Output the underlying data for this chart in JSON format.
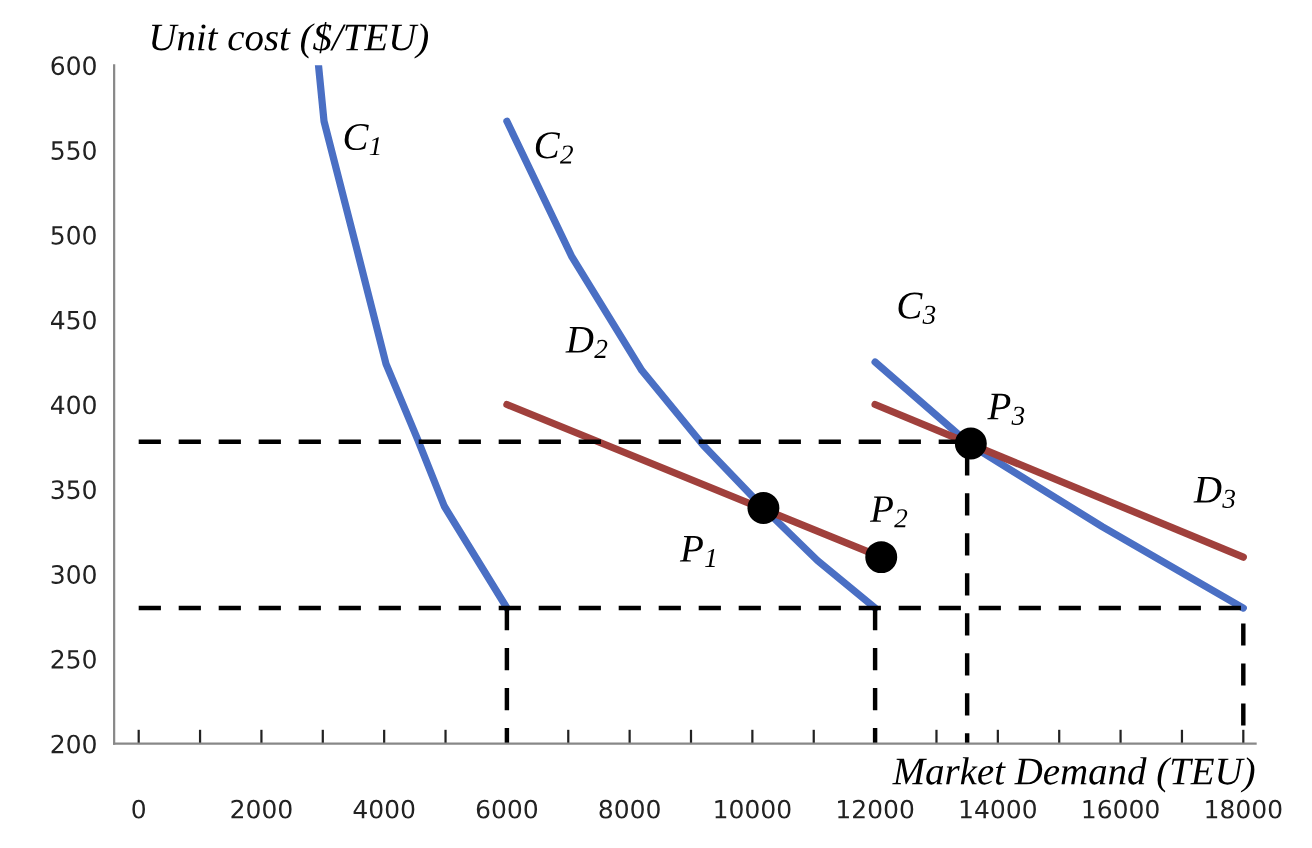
{
  "chart_data": {
    "type": "line",
    "xlabel": "Market Demand (TEU)",
    "ylabel": "Unit cost ($/TEU)",
    "xlim": [
      -400,
      18200
    ],
    "ylim": [
      200,
      600
    ],
    "xticks": [
      0,
      {
        "value": 1000,
        "label": null
      },
      2000,
      {
        "value": 3000,
        "label": null
      },
      4000,
      {
        "value": 5000,
        "label": null
      },
      6000,
      {
        "value": 7000,
        "label": null
      },
      8000,
      {
        "value": 9000,
        "label": null
      },
      10000,
      {
        "value": 11000,
        "label": null
      },
      12000,
      {
        "value": 13000,
        "label": null
      },
      14000,
      {
        "value": 15000,
        "label": null
      },
      16000,
      {
        "value": 17000,
        "label": null
      },
      18000
    ],
    "yticks": [
      200,
      250,
      300,
      350,
      400,
      450,
      500,
      550,
      600
    ],
    "grid": false,
    "legend": false,
    "line_style": "solid",
    "marker": "none",
    "series": [
      {
        "color": "#4a6fc4",
        "x": [
          2930,
          3020,
          3580,
          4030,
          4550,
          4980,
          6000
        ],
        "values": [
          600,
          567,
          488,
          424,
          379,
          340,
          280
        ]
      },
      {
        "color": "#4a6fc4",
        "x": [
          6000,
          7060,
          8200,
          9200,
          10180,
          11060,
          12000
        ],
        "values": [
          567,
          487,
          420,
          376,
          339,
          308,
          280
        ]
      },
      {
        "color": "#4a6fc4",
        "x": [
          12000,
          13560,
          15700,
          18000
        ],
        "values": [
          425,
          376,
          328,
          280
        ]
      },
      {
        "color": "#a0403c",
        "x": [
          6000,
          12100
        ],
        "values": [
          400,
          310
        ]
      },
      {
        "color": "#a0403c",
        "x": [
          12000,
          18000
        ],
        "values": [
          400,
          310
        ]
      },
      {
        "color": "#000000",
        "line_style": "dashed",
        "x": [
          0,
          13500,
          13500
        ],
        "values": [
          378,
          378,
          200
        ]
      },
      {
        "color": "#000000",
        "line_style": "dashed",
        "x": [
          0,
          18000,
          18000
        ],
        "values": [
          280,
          280,
          200
        ]
      },
      {
        "color": "#000000",
        "line_style": "dashed",
        "x": [
          6000,
          6000
        ],
        "values": [
          280,
          200
        ]
      },
      {
        "color": "#000000",
        "line_style": "dashed",
        "x": [
          12000,
          12000
        ],
        "values": [
          280,
          200
        ]
      },
      {
        "type": "scatter",
        "marker": "circle",
        "color": "#000000",
        "x": [
          10180,
          12100,
          13560
        ],
        "values": [
          339,
          310,
          377
        ]
      }
    ],
    "annotations": [
      {
        "text": "C$_{1}$",
        "x": 3020,
        "y": 567
      },
      {
        "text": "C$_{2}$",
        "x": 6000,
        "y": 567
      },
      {
        "text": "C$_{3}$",
        "x": 12000,
        "y": 425
      },
      {
        "text": "D$_{2}$",
        "x": 6000,
        "y": 400
      },
      {
        "text": "D$_{3}$",
        "x": 18000,
        "y": 310
      },
      {
        "text": "P$_{1}$",
        "x": 10180,
        "y": 339
      },
      {
        "text": "P$_{2}$",
        "x": 12100,
        "y": 310
      },
      {
        "text": "P$_{3}$",
        "x": 13560,
        "y": 377
      }
    ]
  }
}
